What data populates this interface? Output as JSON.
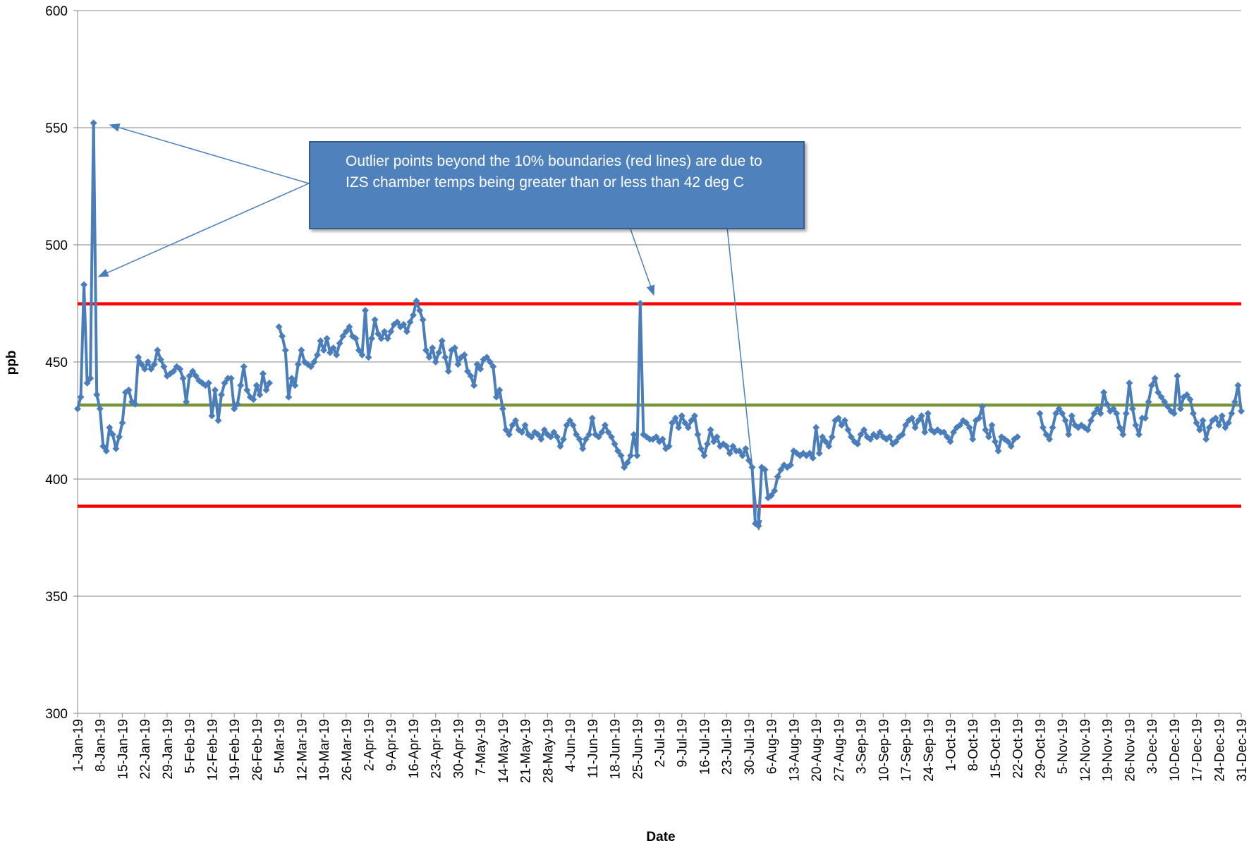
{
  "chart_data": {
    "type": "line",
    "x_label": "Date",
    "y_label": "ppb",
    "annotation": "Outlier points beyond the 10% boundaries (red lines) are due to IZS chamber temps being greater than or less than 42 deg C",
    "ylim": [
      300,
      600
    ],
    "yticks": [
      300,
      350,
      400,
      450,
      500,
      550,
      600
    ],
    "grid": true,
    "reference_lines": [
      {
        "value": 474.8,
        "color": "#ff0000"
      },
      {
        "value": 431.6,
        "color": "#77933c"
      },
      {
        "value": 388.4,
        "color": "#ff0000"
      }
    ],
    "categories": [
      "1-Jan-19",
      null,
      null,
      null,
      null,
      null,
      null,
      "8-Jan-19",
      null,
      null,
      null,
      null,
      null,
      null,
      "15-Jan-19",
      null,
      null,
      null,
      null,
      null,
      null,
      "22-Jan-19",
      null,
      null,
      null,
      null,
      null,
      null,
      "29-Jan-19",
      null,
      null,
      null,
      null,
      null,
      null,
      "5-Feb-19",
      null,
      null,
      null,
      null,
      null,
      null,
      "12-Feb-19",
      null,
      null,
      null,
      null,
      null,
      null,
      "19-Feb-19",
      null,
      null,
      null,
      null,
      null,
      null,
      "26-Feb-19",
      null,
      null,
      null,
      null,
      null,
      null,
      "5-Mar-19",
      null,
      null,
      null,
      null,
      null,
      null,
      "12-Mar-19",
      null,
      null,
      null,
      null,
      null,
      null,
      "19-Mar-19",
      null,
      null,
      null,
      null,
      null,
      null,
      "26-Mar-19",
      null,
      null,
      null,
      null,
      null,
      null,
      "2-Apr-19",
      null,
      null,
      null,
      null,
      null,
      null,
      "9-Apr-19",
      null,
      null,
      null,
      null,
      null,
      null,
      "16-Apr-19",
      null,
      null,
      null,
      null,
      null,
      null,
      "23-Apr-19",
      null,
      null,
      null,
      null,
      null,
      null,
      "30-Apr-19",
      null,
      null,
      null,
      null,
      null,
      null,
      "7-May-19",
      null,
      null,
      null,
      null,
      null,
      null,
      "14-May-19",
      null,
      null,
      null,
      null,
      null,
      null,
      "21-May-19",
      null,
      null,
      null,
      null,
      null,
      null,
      "28-May-19",
      null,
      null,
      null,
      null,
      null,
      null,
      "4-Jun-19",
      null,
      null,
      null,
      null,
      null,
      null,
      "11-Jun-19",
      null,
      null,
      null,
      null,
      null,
      null,
      "18-Jun-19",
      null,
      null,
      null,
      null,
      null,
      null,
      "25-Jun-19",
      null,
      null,
      null,
      null,
      null,
      null,
      "2-Jul-19",
      null,
      null,
      null,
      null,
      null,
      null,
      "9-Jul-19",
      null,
      null,
      null,
      null,
      null,
      null,
      "16-Jul-19",
      null,
      null,
      null,
      null,
      null,
      null,
      "23-Jul-19",
      null,
      null,
      null,
      null,
      null,
      null,
      "30-Jul-19",
      null,
      null,
      null,
      null,
      null,
      null,
      "6-Aug-19",
      null,
      null,
      null,
      null,
      null,
      null,
      "13-Aug-19",
      null,
      null,
      null,
      null,
      null,
      null,
      "20-Aug-19",
      null,
      null,
      null,
      null,
      null,
      null,
      "27-Aug-19",
      null,
      null,
      null,
      null,
      null,
      null,
      "3-Sep-19",
      null,
      null,
      null,
      null,
      null,
      null,
      "10-Sep-19",
      null,
      null,
      null,
      null,
      null,
      null,
      "17-Sep-19",
      null,
      null,
      null,
      null,
      null,
      null,
      "24-Sep-19",
      null,
      null,
      null,
      null,
      null,
      null,
      "1-Oct-19",
      null,
      null,
      null,
      null,
      null,
      null,
      "8-Oct-19",
      null,
      null,
      null,
      null,
      null,
      null,
      "15-Oct-19",
      null,
      null,
      null,
      null,
      null,
      null,
      "22-Oct-19",
      null,
      null,
      null,
      null,
      null,
      null,
      "29-Oct-19",
      null,
      null,
      null,
      null,
      null,
      null,
      "5-Nov-19",
      null,
      null,
      null,
      null,
      null,
      null,
      "12-Nov-19",
      null,
      null,
      null,
      null,
      null,
      null,
      "19-Nov-19",
      null,
      null,
      null,
      null,
      null,
      null,
      "26-Nov-19",
      null,
      null,
      null,
      null,
      null,
      null,
      "3-Dec-19",
      null,
      null,
      null,
      null,
      null,
      null,
      "10-Dec-19",
      null,
      null,
      null,
      null,
      null,
      null,
      "17-Dec-19",
      null,
      null,
      null,
      null,
      null,
      null,
      "24-Dec-19",
      null,
      null,
      null,
      null,
      null,
      null,
      "31-Dec-19"
    ],
    "series": [
      {
        "color": "#4a7ebb",
        "values": [
          430,
          435,
          483,
          441,
          443,
          552,
          436,
          430,
          414,
          412,
          422,
          419,
          413,
          418,
          424,
          437,
          438,
          433,
          432,
          452,
          449,
          447,
          450,
          447,
          449,
          455,
          451,
          448,
          444,
          445,
          446,
          448,
          447,
          443,
          433,
          444,
          446,
          444,
          442,
          441,
          440,
          441,
          427,
          438,
          425,
          436,
          441,
          443,
          443,
          430,
          432,
          440,
          448,
          438,
          435,
          434,
          440,
          436,
          445,
          438,
          441,
          null,
          null,
          465,
          461,
          455,
          435,
          443,
          440,
          449,
          455,
          450,
          449,
          448,
          450,
          453,
          459,
          455,
          460,
          454,
          456,
          453,
          458,
          461,
          463,
          465,
          461,
          460,
          455,
          453,
          472,
          452,
          460,
          468,
          462,
          460,
          463,
          460,
          463,
          466,
          467,
          465,
          466,
          463,
          467,
          470,
          476,
          472,
          468,
          455,
          452,
          456,
          450,
          454,
          459,
          452,
          446,
          455,
          456,
          449,
          452,
          453,
          446,
          444,
          440,
          449,
          447,
          451,
          452,
          450,
          448,
          435,
          438,
          430,
          421,
          419,
          423,
          425,
          421,
          420,
          423,
          419,
          418,
          420,
          419,
          417,
          421,
          419,
          418,
          420,
          418,
          414,
          417,
          423,
          425,
          423,
          419,
          417,
          413,
          417,
          419,
          426,
          419,
          418,
          420,
          423,
          420,
          418,
          415,
          412,
          410,
          405,
          407,
          410,
          419,
          410,
          475,
          419,
          418,
          417,
          417,
          418,
          416,
          417,
          413,
          414,
          424,
          426,
          422,
          427,
          424,
          422,
          425,
          427,
          419,
          413,
          410,
          415,
          421,
          416,
          418,
          414,
          415,
          414,
          411,
          414,
          412,
          412,
          410,
          413,
          408,
          405,
          381,
          380,
          405,
          404,
          392,
          393,
          395,
          401,
          404,
          406,
          405,
          406,
          412,
          411,
          410,
          411,
          410,
          411,
          409,
          422,
          411,
          418,
          416,
          414,
          418,
          425,
          426,
          423,
          425,
          421,
          418,
          416,
          415,
          419,
          421,
          418,
          417,
          419,
          418,
          420,
          418,
          417,
          418,
          415,
          416,
          418,
          419,
          423,
          425,
          426,
          422,
          425,
          427,
          420,
          428,
          421,
          420,
          421,
          420,
          420,
          418,
          416,
          420,
          422,
          423,
          425,
          424,
          422,
          417,
          425,
          426,
          431,
          421,
          418,
          423,
          416,
          412,
          418,
          417,
          416,
          414,
          417,
          418,
          null,
          null,
          null,
          null,
          null,
          null,
          428,
          422,
          419,
          417,
          422,
          428,
          430,
          428,
          425,
          419,
          427,
          423,
          422,
          423,
          422,
          421,
          425,
          428,
          430,
          428,
          437,
          432,
          429,
          430,
          428,
          422,
          419,
          428,
          441,
          430,
          423,
          419,
          426,
          426,
          433,
          440,
          443,
          437,
          435,
          433,
          431,
          429,
          428,
          444,
          430,
          435,
          436,
          434,
          428,
          424,
          421,
          425,
          417,
          422,
          425,
          426,
          423,
          427,
          422,
          424,
          428,
          433,
          440,
          429
        ]
      }
    ]
  }
}
